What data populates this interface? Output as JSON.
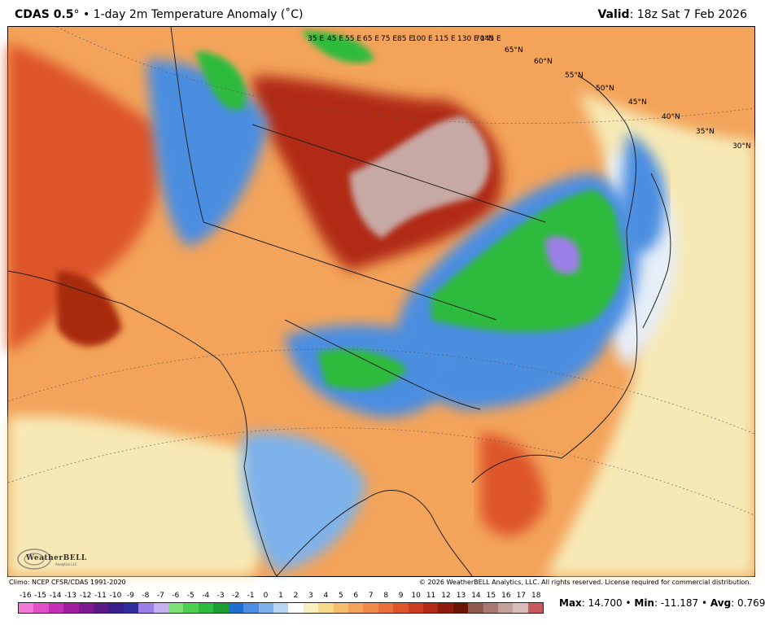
{
  "header": {
    "model": "CDAS 0.5",
    "degree_mark": "°",
    "separator": "•",
    "title_rest": "1-day 2m Temperature Anomaly (˚C)",
    "valid_label": "Valid",
    "valid_value": "18z Sat 7 Feb 2026"
  },
  "map": {
    "colors": {
      "background_warm": "#f3a35a",
      "deep_warm": "#a8290f",
      "very_warm": "#7a1a08",
      "hot_gray": "#c7a9a4",
      "cool_blue": "#4c8ee0",
      "light_blue": "#9cc6ee",
      "green": "#2fbb3e",
      "purple": "#9c7fe6",
      "neutral": "#f7e9b5",
      "ocean_pale": "#e6eef8",
      "borders": "#222222"
    },
    "lat_labels": [
      "65°N",
      "60°N",
      "55°N",
      "50°N",
      "45°N",
      "40°N",
      "35°N",
      "30°N"
    ],
    "lon_labels": [
      "35 E",
      "45 E",
      "55 E",
      "65 E",
      "75 E",
      "85 E",
      "100 E",
      "115 E",
      "130 E",
      "145 E",
      "70°N"
    ]
  },
  "logo": {
    "text": "WeatherBELL",
    "subtext": "Analytics LLC"
  },
  "footer": {
    "climo": "Climo: NCEP CFSR/CDAS 1991-2020",
    "copyright": "© 2026 WeatherBELL Analytics, LLC. All rights reserved. License required for commercial distribution."
  },
  "colorbar": {
    "labels": [
      "-16",
      "-15",
      "-14",
      "-13",
      "-12",
      "-11",
      "-10",
      "-9",
      "-8",
      "-7",
      "-6",
      "-5",
      "-4",
      "-3",
      "-2",
      "-1",
      "0",
      "1",
      "2",
      "3",
      "4",
      "5",
      "6",
      "7",
      "8",
      "9",
      "10",
      "11",
      "12",
      "13",
      "14",
      "15",
      "16",
      "17",
      "18"
    ],
    "colors": [
      "#f27bd8",
      "#e14fc9",
      "#c52fb3",
      "#a21d9c",
      "#7e1a8e",
      "#5a1b86",
      "#3a1f8a",
      "#2f2fa0",
      "#9c7fe6",
      "#c5b0f0",
      "#7fe07a",
      "#4fcf50",
      "#2fbb3e",
      "#1f9d35",
      "#1f6fd0",
      "#4c8ee0",
      "#7eb2ea",
      "#b6d6f2",
      "#ffffff",
      "#fbeec0",
      "#f7d98c",
      "#f4be6a",
      "#f3a35a",
      "#ef8a47",
      "#e9703a",
      "#de552c",
      "#cc3d1f",
      "#b12a14",
      "#8e1b0b",
      "#6e1406",
      "#8c5a4f",
      "#a87a72",
      "#c4a09a",
      "#d8bcb7",
      "#c75a5a"
    ]
  },
  "stats": {
    "max_label": "Max",
    "max_value": "14.700",
    "min_label": "Min",
    "min_value": "-11.187",
    "avg_label": "Avg",
    "avg_value": "0.769",
    "separator": "•"
  }
}
